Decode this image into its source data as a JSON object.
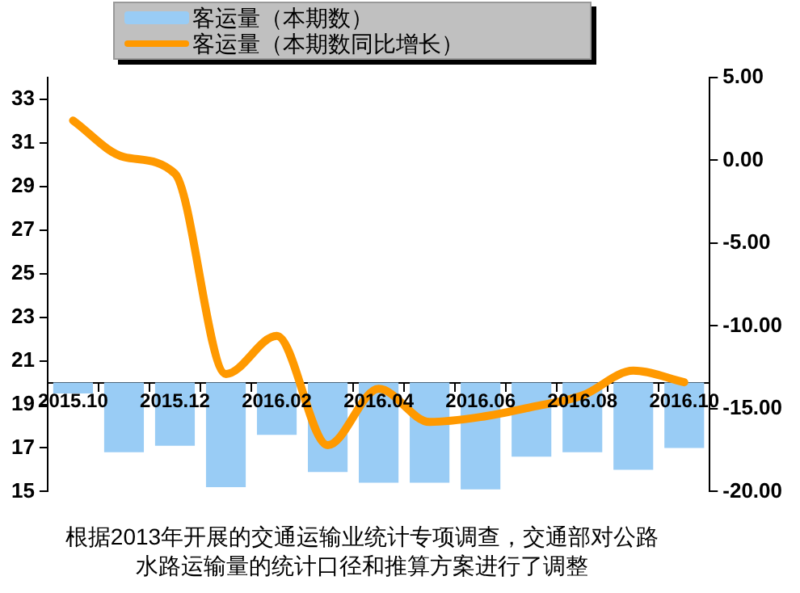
{
  "chart_data": {
    "type": "bar",
    "categories": [
      "2015.10",
      null,
      "2015.12",
      null,
      "2016.02",
      null,
      "2016.04",
      null,
      "2016.06",
      null,
      "2016.08",
      null,
      "2016.10"
    ],
    "series": [
      {
        "name": "客运量（本期数）",
        "color": "#99ccf5",
        "base": [
          20,
          20,
          20,
          20,
          20,
          20,
          20,
          20,
          20,
          20,
          20,
          20,
          20
        ],
        "values": [
          -0.5,
          -3.2,
          -2.9,
          -4.8,
          -2.4,
          -4.1,
          -4.6,
          -4.6,
          -4.9,
          -3.4,
          -3.2,
          -4.0,
          -3.0
        ]
      },
      {
        "name": "客运量（本期数同比增长）",
        "type": "line",
        "axis": "y2",
        "color": "#ff9900",
        "values": [
          2.4,
          0.2,
          -0.8,
          -12.9,
          -10.6,
          -17.2,
          -13.8,
          -15.8,
          -15.5,
          -14.9,
          -14.2,
          -12.7,
          -13.4
        ]
      }
    ],
    "ylim": [
      15,
      34
    ],
    "yticks": [
      15,
      17,
      19,
      21,
      23,
      25,
      27,
      29,
      31,
      33
    ],
    "y2lim": [
      -20,
      5
    ],
    "y2ticks": [
      {
        "value": -20,
        "label": "-20.00"
      },
      {
        "value": -15,
        "label": "-15.00"
      },
      {
        "value": -10,
        "label": "-10.00"
      },
      {
        "value": -5,
        "label": "-5.00"
      },
      {
        "value": 0,
        "label": "0.00"
      },
      {
        "value": 5,
        "label": "5.00"
      }
    ],
    "grid": false,
    "legend": "top",
    "marker": "none",
    "annotations": [
      "根据2013年开展的交通运输业统计专项调查，交通部对公路水路运输量的统计口径和推算方案进行了调整"
    ]
  }
}
